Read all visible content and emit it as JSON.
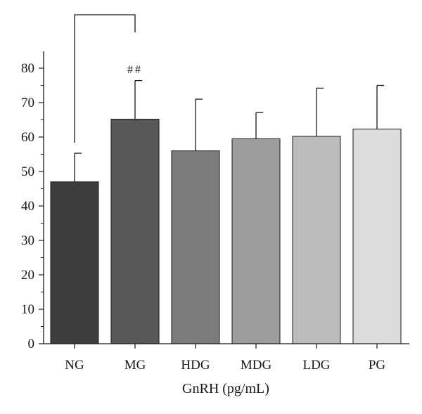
{
  "chart_data": {
    "type": "bar",
    "title": "",
    "xlabel": "GnRH (pg/mL)",
    "ylabel": "",
    "ylim": [
      0,
      85
    ],
    "yticks": [
      0,
      10,
      20,
      30,
      40,
      50,
      60,
      70,
      80
    ],
    "grid": false,
    "categories": [
      "NG",
      "MG",
      "HDG",
      "MDG",
      "LDG",
      "PG"
    ],
    "values": [
      47,
      65.2,
      56,
      59.5,
      60.2,
      62.3
    ],
    "errors": [
      8.3,
      11.2,
      15,
      7.6,
      14,
      12.7
    ],
    "bar_colors": [
      "#3d3d3d",
      "#575757",
      "#7b7b7b",
      "#9c9c9c",
      "#bcbcbc",
      "#dcdcdc"
    ],
    "annotation": {
      "text": "##",
      "bracket_from": "NG",
      "bracket_to": "MG"
    }
  }
}
